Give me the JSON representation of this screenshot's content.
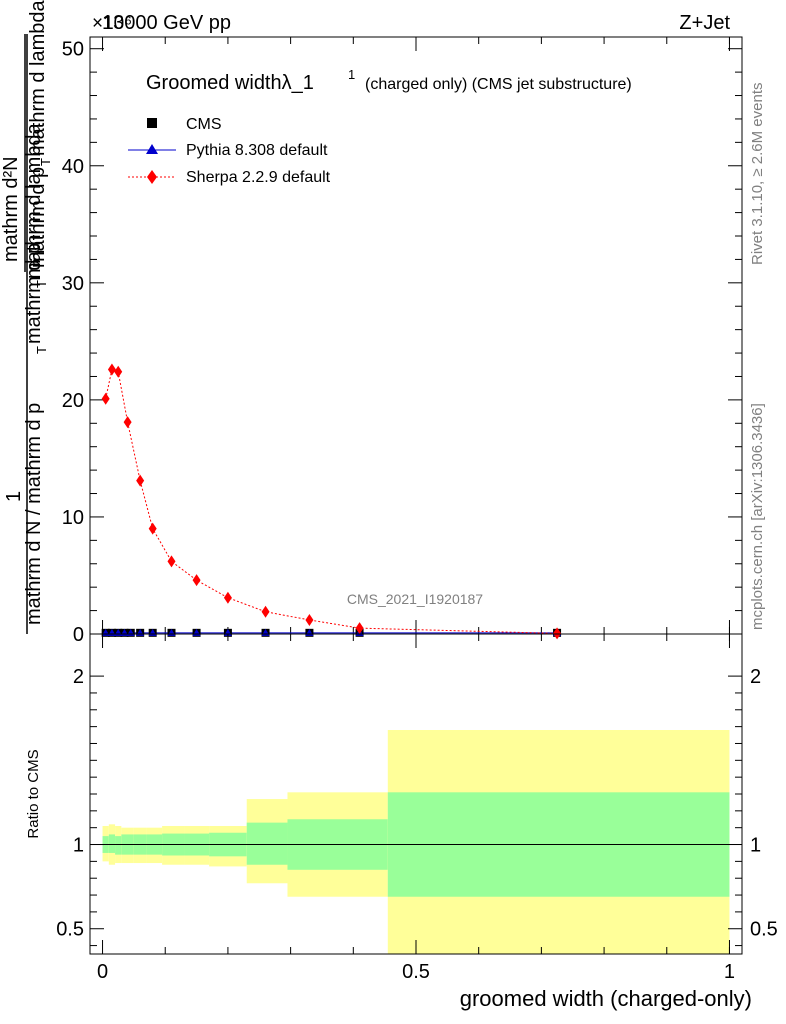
{
  "header": {
    "left": "13000 GeV pp",
    "right": "Z+Jet",
    "exponent": "×10⁶"
  },
  "side": {
    "rivet": "Rivet 3.1.10, ≥ 2.6M events",
    "mcplots": "mcplots.cern.ch [arXiv:1306.3436]"
  },
  "main": {
    "title": "Groomed widthλ_1",
    "title_sup": "1",
    "title_suffix": "(charged only) (CMS jet substructure)",
    "ylabel_num_top": "1",
    "ylabel_num": "mathrm d²N",
    "ylabel_den1": "mathrm d p",
    "ylabel_den_sub": "T",
    "ylabel_den2": " mathrm d lambda",
    "ylabel_low1": "mathrm d N / mathrm d p",
    "ylabel_low_sub": "T",
    "ylabel_low2": " mathrm d p",
    "ylabel_low_sub2": "T",
    "ylabel_low3": " mathrm d lambda",
    "watermark": "CMS_2021_I1920187"
  },
  "ratio": {
    "ylabel": "Ratio to CMS",
    "xlabel": "groomed width (charged-only)"
  },
  "legend": [
    {
      "label": "CMS",
      "color": "#000000",
      "marker": "square"
    },
    {
      "label": "Pythia 8.308 default",
      "color": "#0000cc",
      "marker": "triangle"
    },
    {
      "label": "Sherpa 2.2.9 default",
      "color": "#ff0000",
      "marker": "diamond"
    }
  ],
  "chart_data": [
    {
      "type": "scatter",
      "panel": "main",
      "xlim": [
        -0.02,
        1.02
      ],
      "ylim": [
        0,
        51
      ],
      "yticks": [
        0,
        10,
        20,
        30,
        40,
        50
      ],
      "ytick_labels": [
        "0",
        "10",
        "20",
        "30",
        "40",
        "50"
      ],
      "y_scale_factor": "×10⁶",
      "series": [
        {
          "name": "CMS",
          "color": "#000000",
          "x": [
            0.005,
            0.015,
            0.025,
            0.035,
            0.045,
            0.06,
            0.08,
            0.11,
            0.15,
            0.2,
            0.26,
            0.33,
            0.41,
            0.725
          ],
          "y": [
            0.1,
            0.1,
            0.1,
            0.1,
            0.1,
            0.1,
            0.1,
            0.1,
            0.1,
            0.1,
            0.1,
            0.1,
            0.1,
            0.1
          ]
        },
        {
          "name": "Pythia 8.308 default",
          "color": "#0000cc",
          "x": [
            0.005,
            0.015,
            0.025,
            0.035,
            0.045,
            0.06,
            0.08,
            0.11,
            0.15,
            0.2,
            0.26,
            0.33,
            0.41,
            0.725
          ],
          "y": [
            0.1,
            0.1,
            0.1,
            0.1,
            0.1,
            0.1,
            0.1,
            0.1,
            0.1,
            0.1,
            0.1,
            0.1,
            0.1,
            0.1
          ]
        },
        {
          "name": "Sherpa 2.2.9 default",
          "color": "#ff0000",
          "x": [
            0.005,
            0.015,
            0.025,
            0.04,
            0.06,
            0.08,
            0.11,
            0.15,
            0.2,
            0.26,
            0.33,
            0.41,
            0.725
          ],
          "y": [
            20.1,
            22.6,
            22.4,
            18.1,
            13.1,
            9.0,
            6.2,
            4.6,
            3.1,
            1.9,
            1.2,
            0.5,
            0.05
          ]
        }
      ]
    },
    {
      "type": "area",
      "panel": "ratio",
      "xlim": [
        -0.02,
        1.02
      ],
      "ylim": [
        0.35,
        2.25
      ],
      "yticks": [
        0.5,
        1,
        2
      ],
      "ytick_labels": [
        "0.5",
        "1",
        "2"
      ],
      "xticks": [
        0,
        0.5,
        1
      ],
      "xtick_labels": [
        "0",
        "0.5",
        "1"
      ],
      "bins": [
        {
          "x0": 0.0,
          "x1": 0.01,
          "inner": [
            0.95,
            1.05
          ],
          "outer": [
            0.9,
            1.11
          ]
        },
        {
          "x0": 0.01,
          "x1": 0.02,
          "inner": [
            0.95,
            1.06
          ],
          "outer": [
            0.88,
            1.12
          ]
        },
        {
          "x0": 0.02,
          "x1": 0.03,
          "inner": [
            0.94,
            1.05
          ],
          "outer": [
            0.89,
            1.11
          ]
        },
        {
          "x0": 0.03,
          "x1": 0.05,
          "inner": [
            0.94,
            1.06
          ],
          "outer": [
            0.89,
            1.1
          ]
        },
        {
          "x0": 0.05,
          "x1": 0.07,
          "inner": [
            0.94,
            1.06
          ],
          "outer": [
            0.89,
            1.1
          ]
        },
        {
          "x0": 0.07,
          "x1": 0.095,
          "inner": [
            0.94,
            1.06
          ],
          "outer": [
            0.89,
            1.1
          ]
        },
        {
          "x0": 0.095,
          "x1": 0.13,
          "inner": [
            0.935,
            1.065
          ],
          "outer": [
            0.88,
            1.11
          ]
        },
        {
          "x0": 0.13,
          "x1": 0.17,
          "inner": [
            0.935,
            1.065
          ],
          "outer": [
            0.88,
            1.11
          ]
        },
        {
          "x0": 0.17,
          "x1": 0.23,
          "inner": [
            0.93,
            1.07
          ],
          "outer": [
            0.87,
            1.11
          ]
        },
        {
          "x0": 0.23,
          "x1": 0.295,
          "inner": [
            0.88,
            1.13
          ],
          "outer": [
            0.77,
            1.27
          ]
        },
        {
          "x0": 0.295,
          "x1": 0.455,
          "inner": [
            0.85,
            1.15
          ],
          "outer": [
            0.69,
            1.31
          ]
        },
        {
          "x0": 0.455,
          "x1": 1.0,
          "inner": [
            0.69,
            1.31
          ],
          "outer": [
            0.35,
            1.68
          ]
        }
      ],
      "reference_line": 1
    }
  ]
}
